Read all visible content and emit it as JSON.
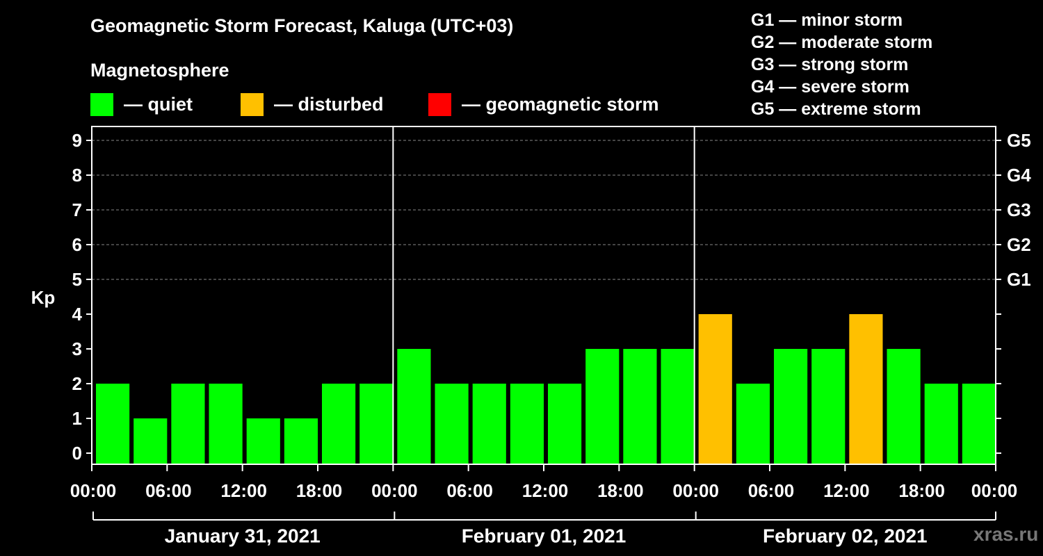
{
  "chart_data": {
    "type": "bar",
    "title": "Geomagnetic Storm Forecast, Kaluga (UTC+03)",
    "subtitle": "Magnetosphere",
    "ylabel": "Kp",
    "ylim": [
      0,
      9
    ],
    "yticks": [
      "0",
      "1",
      "2",
      "3",
      "4",
      "5",
      "6",
      "7",
      "8",
      "9"
    ],
    "right_ticks": [
      {
        "value": 5,
        "label": "G1"
      },
      {
        "value": 6,
        "label": "G2"
      },
      {
        "value": 7,
        "label": "G3"
      },
      {
        "value": 8,
        "label": "G4"
      },
      {
        "value": 9,
        "label": "G5"
      }
    ],
    "xtick_labels": [
      "00:00",
      "06:00",
      "12:00",
      "18:00",
      "00:00",
      "06:00",
      "12:00",
      "18:00",
      "00:00",
      "06:00",
      "12:00",
      "18:00",
      "00:00"
    ],
    "days": [
      "January 31, 2021",
      "February 01, 2021",
      "February 02, 2021"
    ],
    "values": [
      2,
      1,
      2,
      2,
      1,
      1,
      2,
      2,
      3,
      2,
      2,
      2,
      2,
      3,
      3,
      3,
      4,
      2,
      3,
      3,
      4,
      3,
      2,
      2
    ],
    "status": [
      "quiet",
      "quiet",
      "quiet",
      "quiet",
      "quiet",
      "quiet",
      "quiet",
      "quiet",
      "quiet",
      "quiet",
      "quiet",
      "quiet",
      "quiet",
      "quiet",
      "quiet",
      "quiet",
      "disturbed",
      "quiet",
      "quiet",
      "quiet",
      "disturbed",
      "quiet",
      "quiet",
      "quiet"
    ],
    "colors": {
      "quiet": "#00ff00",
      "disturbed": "#ffc000",
      "storm": "#ff0000"
    },
    "grid": true
  },
  "legend": {
    "quiet": "— quiet",
    "disturbed": "— disturbed",
    "storm": "— geomagnetic storm"
  },
  "storm_scale": {
    "g1": "G1 — minor storm",
    "g2": "G2 — moderate storm",
    "g3": "G3 — strong storm",
    "g4": "G4 — severe storm",
    "g5": "G5 — extreme storm"
  },
  "watermark": "xras.ru"
}
